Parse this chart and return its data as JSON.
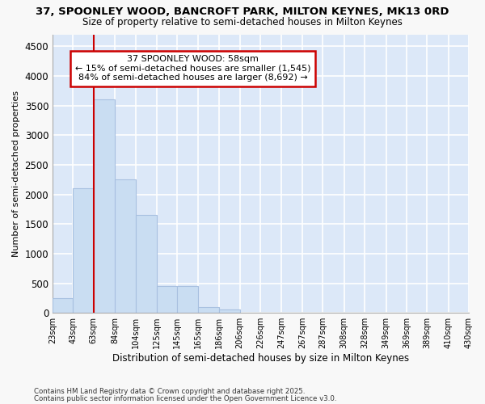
{
  "title1": "37, SPOONLEY WOOD, BANCROFT PARK, MILTON KEYNES, MK13 0RD",
  "title2": "Size of property relative to semi-detached houses in Milton Keynes",
  "xlabel": "Distribution of semi-detached houses by size in Milton Keynes",
  "ylabel": "Number of semi-detached properties",
  "footnote1": "Contains HM Land Registry data © Crown copyright and database right 2025.",
  "footnote2": "Contains public sector information licensed under the Open Government Licence v3.0.",
  "annotation_title": "37 SPOONLEY WOOD: 58sqm",
  "annotation_line1": "← 15% of semi-detached houses are smaller (1,545)",
  "annotation_line2": "84% of semi-detached houses are larger (8,692) →",
  "bar_left_edges": [
    23,
    43,
    63,
    84,
    104,
    125,
    145,
    165,
    186,
    206,
    226,
    247,
    267,
    287,
    308,
    328,
    349,
    369,
    389,
    410
  ],
  "bar_widths": [
    20,
    20,
    21,
    20,
    21,
    20,
    20,
    21,
    20,
    20,
    21,
    20,
    20,
    21,
    20,
    21,
    20,
    20,
    21,
    20
  ],
  "bar_heights": [
    250,
    2100,
    3600,
    2250,
    1650,
    450,
    450,
    100,
    60,
    0,
    0,
    0,
    0,
    0,
    0,
    0,
    0,
    0,
    0,
    0
  ],
  "bar_color": "#c9ddf2",
  "bar_edge_color": "#a8c0e0",
  "vline_color": "#cc0000",
  "vline_x": 63,
  "annotation_box_color": "#cc0000",
  "ylim": [
    0,
    4700
  ],
  "yticks": [
    0,
    500,
    1000,
    1500,
    2000,
    2500,
    3000,
    3500,
    4000,
    4500
  ],
  "bg_color": "#dce8f8",
  "fig_bg_color": "#f8f8f8",
  "grid_color": "#ffffff",
  "tick_labels": [
    "23sqm",
    "43sqm",
    "63sqm",
    "84sqm",
    "104sqm",
    "125sqm",
    "145sqm",
    "165sqm",
    "186sqm",
    "206sqm",
    "226sqm",
    "247sqm",
    "267sqm",
    "287sqm",
    "308sqm",
    "328sqm",
    "349sqm",
    "369sqm",
    "389sqm",
    "410sqm",
    "430sqm"
  ]
}
